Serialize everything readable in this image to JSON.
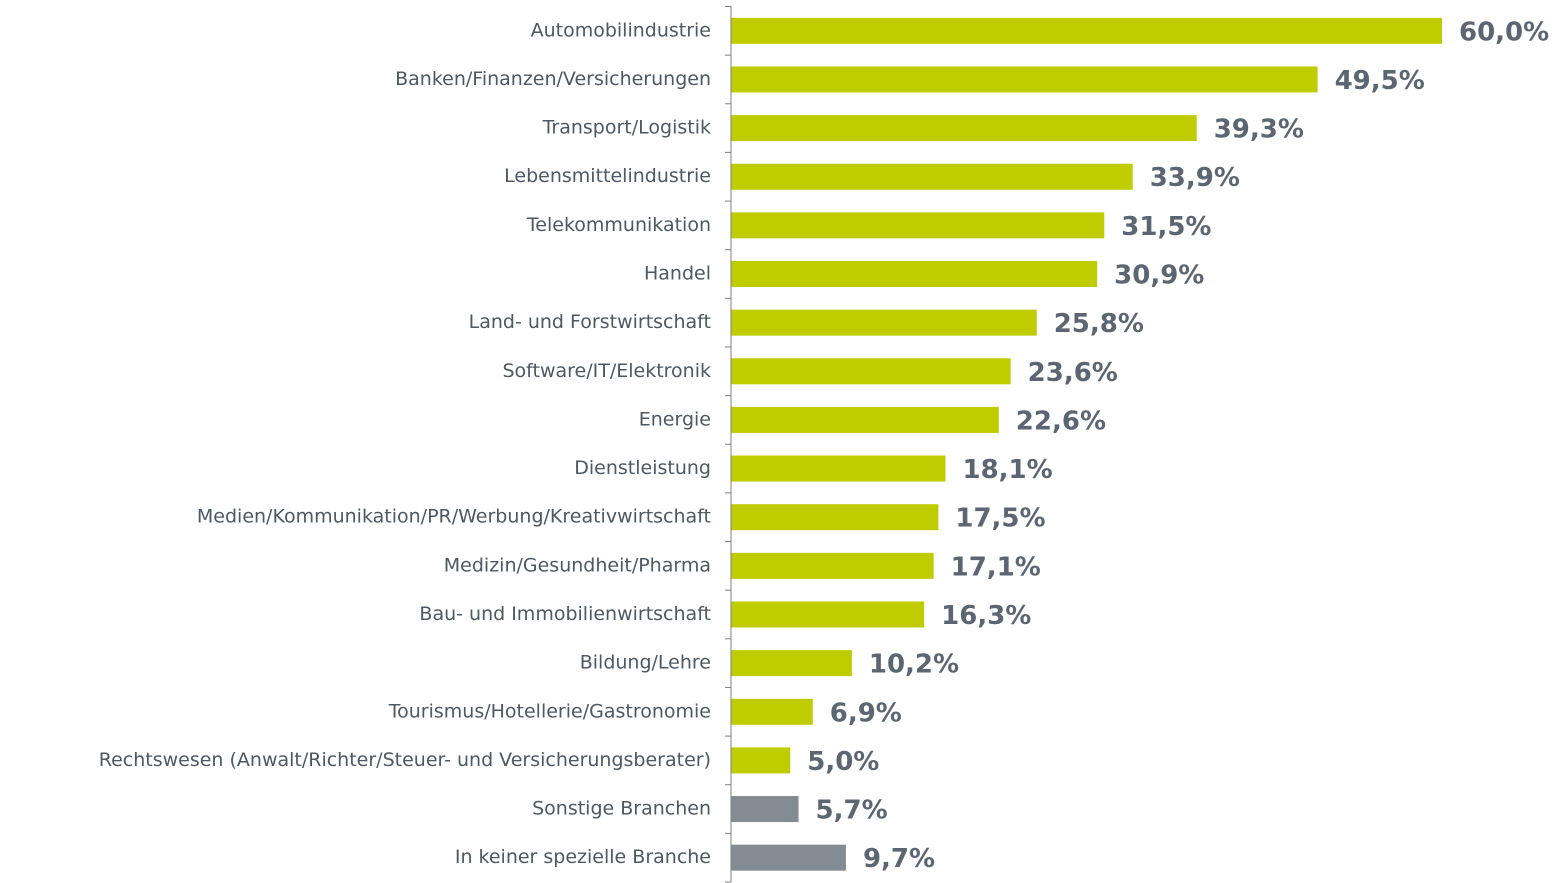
{
  "chart_data": {
    "type": "barh",
    "categories": [
      "Automobilindustrie",
      "Banken/Finanzen/Versicherungen",
      "Transport/Logistik",
      "Lebensmittelindustrie",
      "Telekommunikation",
      "Handel",
      "Land- und Forstwirtschaft",
      "Software/IT/Elektronik",
      "Energie",
      "Dienstleistung",
      "Medien/Kommunikation/PR/Werbung/Kreativwirtschaft",
      "Medizin/Gesundheit/Pharma",
      "Bau- und Immobilienwirtschaft",
      "Bildung/Lehre",
      "Tourismus/Hotellerie/Gastronomie",
      "Rechtswesen (Anwalt/Richter/Steuer- und Versicherungsberater)",
      "Sonstige Branchen",
      "In keiner spezielle Branche"
    ],
    "values": [
      60.0,
      49.5,
      39.3,
      33.9,
      31.5,
      30.9,
      25.8,
      23.6,
      22.6,
      18.1,
      17.5,
      17.1,
      16.3,
      10.2,
      6.9,
      5.0,
      5.7,
      9.7
    ],
    "value_labels": [
      "60,0%",
      "49,5%",
      "39,3%",
      "33,9%",
      "31,5%",
      "30,9%",
      "25,8%",
      "23,6%",
      "22,6%",
      "18,1%",
      "17,5%",
      "17,1%",
      "16,3%",
      "10,2%",
      "6,9%",
      "5,0%",
      "5,7%",
      "9,7%"
    ],
    "colors": [
      "#bfcc00",
      "#bfcc00",
      "#bfcc00",
      "#bfcc00",
      "#bfcc00",
      "#bfcc00",
      "#bfcc00",
      "#bfcc00",
      "#bfcc00",
      "#bfcc00",
      "#bfcc00",
      "#bfcc00",
      "#bfcc00",
      "#bfcc00",
      "#bfcc00",
      "#bfcc00",
      "#838b93",
      "#838b93"
    ],
    "xlim": [
      0,
      60
    ]
  }
}
